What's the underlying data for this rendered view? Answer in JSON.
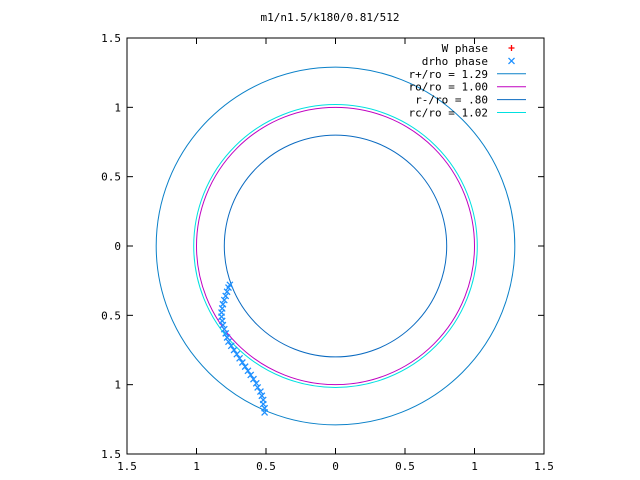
{
  "chart_data": {
    "type": "scatter",
    "title": "m1/n1.5/k180/0.81/512",
    "xlim": [
      -1.5,
      1.5
    ],
    "ylim": [
      -1.5,
      1.5
    ],
    "x_ticks": [
      {
        "value": -1.5,
        "label": "1.5"
      },
      {
        "value": -1.0,
        "label": "1"
      },
      {
        "value": -0.5,
        "label": "0.5"
      },
      {
        "value": 0,
        "label": "0"
      },
      {
        "value": 0.5,
        "label": "0.5"
      },
      {
        "value": 1.0,
        "label": "1"
      },
      {
        "value": 1.5,
        "label": "1.5"
      }
    ],
    "y_ticks": [
      {
        "value": 1.5,
        "label": "1.5"
      },
      {
        "value": 1.0,
        "label": "1"
      },
      {
        "value": 0.5,
        "label": "0.5"
      },
      {
        "value": 0,
        "label": "0"
      },
      {
        "value": -0.5,
        "label": "0.5"
      },
      {
        "value": -1.0,
        "label": "1"
      },
      {
        "value": -1.5,
        "label": "1.5"
      }
    ],
    "grid": false,
    "legend_position": "top-right",
    "series": [
      {
        "name": "W phase",
        "kind": "points",
        "marker": "plus",
        "color": "#ff0000",
        "points": []
      },
      {
        "name": "drho phase",
        "kind": "points",
        "marker": "cross",
        "color": "#1e90ff",
        "points": [
          [
            -0.76,
            -0.28
          ],
          [
            -0.77,
            -0.3
          ],
          [
            -0.78,
            -0.33
          ],
          [
            -0.79,
            -0.36
          ],
          [
            -0.8,
            -0.39
          ],
          [
            -0.81,
            -0.42
          ],
          [
            -0.815,
            -0.45
          ],
          [
            -0.82,
            -0.48
          ],
          [
            -0.82,
            -0.51
          ],
          [
            -0.815,
            -0.54
          ],
          [
            -0.81,
            -0.57
          ],
          [
            -0.8,
            -0.6
          ],
          [
            -0.79,
            -0.63
          ],
          [
            -0.78,
            -0.66
          ],
          [
            -0.77,
            -0.69
          ],
          [
            -0.75,
            -0.72
          ],
          [
            -0.73,
            -0.75
          ],
          [
            -0.71,
            -0.78
          ],
          [
            -0.69,
            -0.81
          ],
          [
            -0.67,
            -0.84
          ],
          [
            -0.65,
            -0.87
          ],
          [
            -0.63,
            -0.9
          ],
          [
            -0.61,
            -0.93
          ],
          [
            -0.59,
            -0.96
          ],
          [
            -0.57,
            -0.99
          ],
          [
            -0.56,
            -1.02
          ],
          [
            -0.54,
            -1.05
          ],
          [
            -0.53,
            -1.08
          ],
          [
            -0.52,
            -1.11
          ],
          [
            -0.52,
            -1.14
          ],
          [
            -0.51,
            -1.17
          ],
          [
            -0.51,
            -1.2
          ]
        ]
      },
      {
        "name": "r+/ro = 1.29",
        "kind": "circle",
        "radius": 1.29,
        "color": "#0a80c8"
      },
      {
        "name": "ro/ro = 1.00",
        "kind": "circle",
        "radius": 1.0,
        "color": "#c000c0"
      },
      {
        "name": "r-/ro = .80",
        "kind": "circle",
        "radius": 0.8,
        "color": "#0a6ac0"
      },
      {
        "name": "rc/ro = 1.02",
        "kind": "circle",
        "radius": 1.02,
        "color": "#00e0e0"
      }
    ]
  }
}
